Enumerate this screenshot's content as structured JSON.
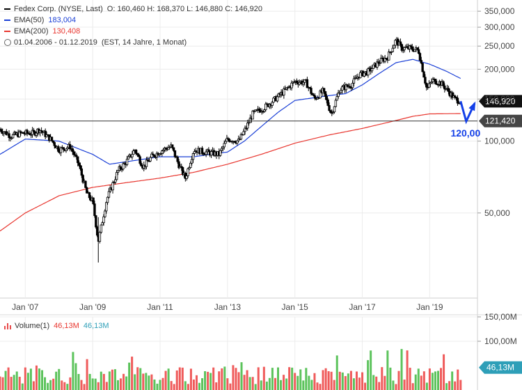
{
  "legend": {
    "title": "Fedex Corp. (NYSE, Last)",
    "ohlc": "O: 160,460  H: 168,370  L: 146,880  C: 146,920",
    "ema50_label": "EMA(50)",
    "ema50_value": "183,004",
    "ema200_label": "EMA(200)",
    "ema200_value": "130,408",
    "range": "01.04.2006 - 01.12.2019",
    "range_note": "(EST, 14 Jahre, 1 Monat)",
    "volume_label": "Volume(1)",
    "volume_value1": "46,13M",
    "volume_value2": "46,13M"
  },
  "colors": {
    "ema50": "#1a3fd6",
    "ema200": "#e8352e",
    "candle": "#000000",
    "arrow": "#1440e8",
    "volume_up": "#5cc35c",
    "volume_down": "#ef5b5b",
    "volume_badge": "#2e9fb8"
  },
  "chart_data": {
    "type": "candlestick",
    "y_scale": "log",
    "ylim": [
      22,
      390
    ],
    "y_ticks": [
      "350,000",
      "300,000",
      "250,000",
      "200,000",
      "150,000",
      "100,000",
      "50,000"
    ],
    "y_tick_values": [
      350,
      300,
      250,
      200,
      150,
      100,
      50
    ],
    "x_ticks": [
      "Jan '07",
      "Jan '09",
      "Jan '11",
      "Jan '13",
      "Jan '15",
      "Jan '17",
      "Jan '19"
    ],
    "x_tick_values": [
      "2007-01",
      "2009-01",
      "2011-01",
      "2013-01",
      "2015-01",
      "2017-01",
      "2019-01"
    ],
    "xlim": [
      "2006-04",
      "2020-06"
    ],
    "price_path": [
      [
        "2006-04",
        112
      ],
      [
        "2006-08",
        105
      ],
      [
        "2006-12",
        108
      ],
      [
        "2007-04",
        108
      ],
      [
        "2007-06",
        112
      ],
      [
        "2007-10",
        102
      ],
      [
        "2008-01",
        92
      ],
      [
        "2008-05",
        95
      ],
      [
        "2008-08",
        80
      ],
      [
        "2008-11",
        60
      ],
      [
        "2009-01",
        56
      ],
      [
        "2009-03",
        38
      ],
      [
        "2009-06",
        57
      ],
      [
        "2009-10",
        75
      ],
      [
        "2010-01",
        82
      ],
      [
        "2010-04",
        92
      ],
      [
        "2010-07",
        78
      ],
      [
        "2010-10",
        86
      ],
      [
        "2011-02",
        92
      ],
      [
        "2011-05",
        95
      ],
      [
        "2011-08",
        78
      ],
      [
        "2011-10",
        70
      ],
      [
        "2012-01",
        92
      ],
      [
        "2012-05",
        90
      ],
      [
        "2012-10",
        88
      ],
      [
        "2013-01",
        102
      ],
      [
        "2013-05",
        100
      ],
      [
        "2013-07",
        110
      ],
      [
        "2013-10",
        130
      ],
      [
        "2014-02",
        138
      ],
      [
        "2014-06",
        150
      ],
      [
        "2014-10",
        165
      ],
      [
        "2015-01",
        178
      ],
      [
        "2015-05",
        176
      ],
      [
        "2015-08",
        150
      ],
      [
        "2015-11",
        162
      ],
      [
        "2016-02",
        130
      ],
      [
        "2016-05",
        165
      ],
      [
        "2016-09",
        172
      ],
      [
        "2016-12",
        190
      ],
      [
        "2017-03",
        195
      ],
      [
        "2017-07",
        215
      ],
      [
        "2017-10",
        225
      ],
      [
        "2018-01",
        265
      ],
      [
        "2018-03",
        245
      ],
      [
        "2018-06",
        245
      ],
      [
        "2018-09",
        240
      ],
      [
        "2018-12",
        165
      ],
      [
        "2019-02",
        180
      ],
      [
        "2019-05",
        175
      ],
      [
        "2019-08",
        160
      ],
      [
        "2019-10",
        150
      ],
      [
        "2019-12",
        146.92
      ]
    ],
    "ema50_path": [
      [
        "2006-04",
        88
      ],
      [
        "2007-01",
        102
      ],
      [
        "2008-01",
        100
      ],
      [
        "2009-01",
        88
      ],
      [
        "2009-07",
        80
      ],
      [
        "2010-01",
        82
      ],
      [
        "2011-01",
        86
      ],
      [
        "2012-01",
        86
      ],
      [
        "2013-01",
        90
      ],
      [
        "2013-07",
        100
      ],
      [
        "2014-01",
        115
      ],
      [
        "2014-07",
        132
      ],
      [
        "2015-01",
        148
      ],
      [
        "2016-01",
        155
      ],
      [
        "2016-07",
        158
      ],
      [
        "2017-01",
        172
      ],
      [
        "2017-07",
        192
      ],
      [
        "2018-01",
        213
      ],
      [
        "2018-07",
        220
      ],
      [
        "2019-01",
        210
      ],
      [
        "2019-07",
        196
      ],
      [
        "2019-12",
        183.004
      ]
    ],
    "ema200_path": [
      [
        "2006-04",
        42
      ],
      [
        "2007-01",
        50
      ],
      [
        "2008-01",
        59
      ],
      [
        "2009-01",
        64
      ],
      [
        "2010-01",
        67
      ],
      [
        "2011-01",
        70
      ],
      [
        "2012-01",
        74
      ],
      [
        "2013-01",
        80
      ],
      [
        "2014-01",
        88
      ],
      [
        "2015-01",
        98
      ],
      [
        "2016-01",
        106
      ],
      [
        "2017-01",
        113
      ],
      [
        "2018-01",
        122
      ],
      [
        "2018-07",
        127
      ],
      [
        "2019-01",
        130
      ],
      [
        "2019-12",
        130.408
      ]
    ],
    "horizontal_line": {
      "value": 121.42,
      "label": "121,420"
    },
    "last_price": {
      "value": 146.92,
      "label": "146,920"
    },
    "projection": {
      "points": [
        [
          "2019-12",
          146.92
        ],
        [
          "2020-02",
          121
        ],
        [
          "2020-05",
          144
        ]
      ],
      "label": "120,00"
    },
    "volume": {
      "y_ticks": [
        "150,00M",
        "100,00M"
      ],
      "y_tick_values": [
        150,
        100
      ],
      "ylim": [
        0,
        150
      ],
      "last_label": "46,13M"
    }
  }
}
